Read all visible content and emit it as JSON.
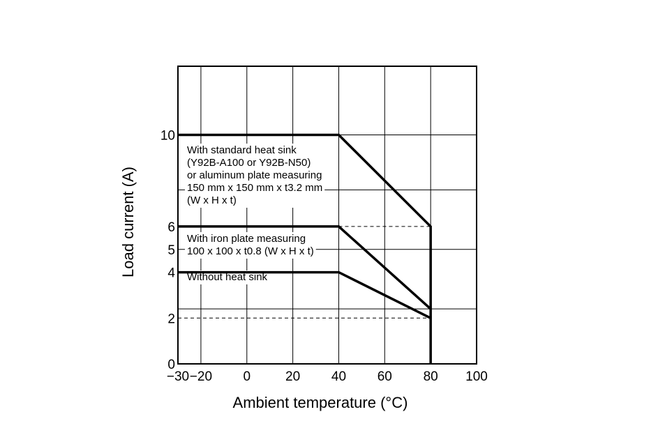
{
  "chart_data": {
    "type": "line",
    "title": "",
    "xlabel": "Ambient temperature (°C)",
    "ylabel": "Load current (A)",
    "xlim": [
      -30,
      100
    ],
    "ylim": [
      0,
      13
    ],
    "x_ticks": [
      {
        "value": -30,
        "label": "−30"
      },
      {
        "value": -20,
        "label": "−20"
      },
      {
        "value": 0,
        "label": "0"
      },
      {
        "value": 20,
        "label": "20"
      },
      {
        "value": 40,
        "label": "40"
      },
      {
        "value": 60,
        "label": "60"
      },
      {
        "value": 80,
        "label": "80"
      },
      {
        "value": 100,
        "label": "100"
      }
    ],
    "y_ticks": [
      {
        "value": 0,
        "label": "0"
      },
      {
        "value": 2,
        "label": "2"
      },
      {
        "value": 4,
        "label": "4"
      },
      {
        "value": 5,
        "label": "5"
      },
      {
        "value": 6,
        "label": "6"
      },
      {
        "value": 10,
        "label": "10"
      }
    ],
    "grid": true,
    "x_gridlines": [
      -20,
      0,
      20,
      40,
      60,
      80
    ],
    "y_gridlines": [
      2.4,
      5,
      7.6,
      10
    ],
    "series": [
      {
        "key": "standard_heat_sink",
        "x": [
          -30,
          40,
          80,
          80
        ],
        "y": [
          10,
          10,
          6,
          0
        ],
        "annotation": [
          "With standard heat sink",
          "(Y92B-A100 or Y92B-N50)",
          "or aluminum plate measuring",
          "150 mm x 150 mm x t3.2 mm",
          "(W x H x t)"
        ]
      },
      {
        "key": "iron_plate",
        "x": [
          -30,
          40,
          80
        ],
        "y": [
          6,
          6,
          2.4
        ],
        "annotation": [
          "With iron plate measuring",
          "100 x 100 x t0.8 (W x H x t)"
        ]
      },
      {
        "key": "without_heat_sink",
        "x": [
          -30,
          40,
          80
        ],
        "y": [
          4,
          4,
          2
        ],
        "annotation": [
          "Without heat sink"
        ]
      }
    ],
    "reference_lines": [
      {
        "x": [
          40,
          80
        ],
        "y": [
          6,
          6
        ]
      },
      {
        "x": [
          -30,
          80
        ],
        "y": [
          2,
          2
        ]
      }
    ]
  }
}
